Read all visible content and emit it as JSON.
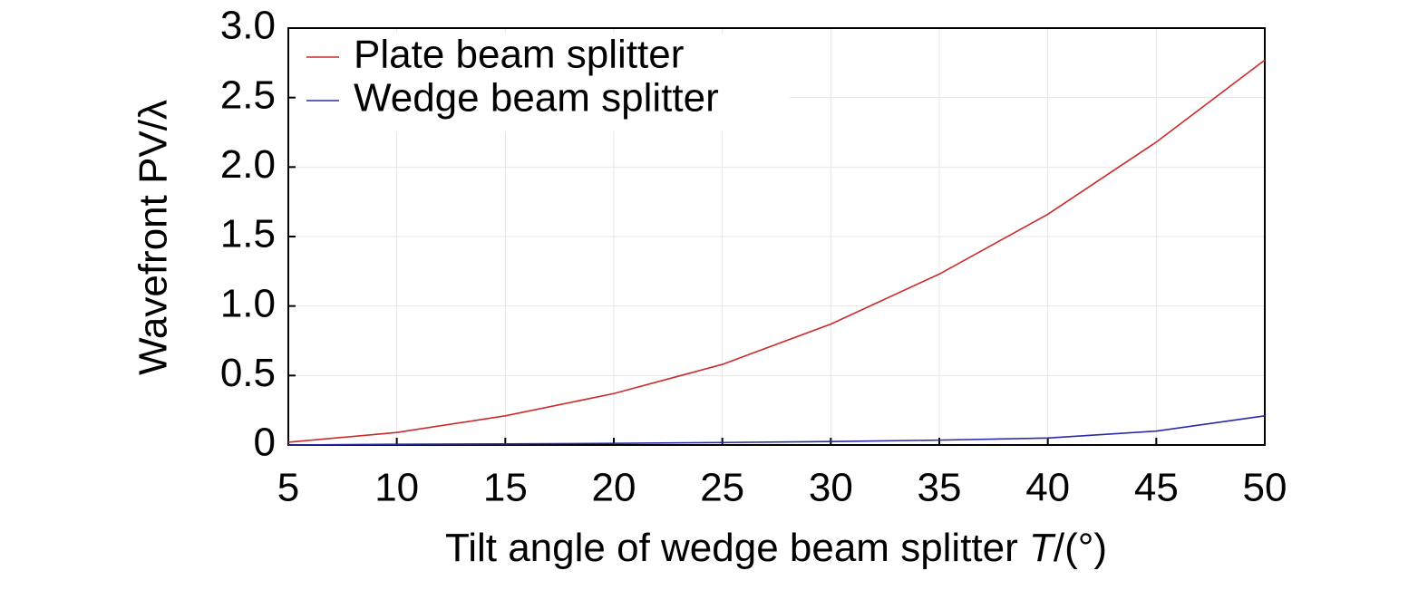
{
  "chart_data": {
    "type": "line",
    "x_label": [
      "Tilt angle of wedge beam splitter ",
      "T",
      "/(°)"
    ],
    "y_label": "Wavefront PV/λ",
    "x": [
      5,
      10,
      15,
      20,
      25,
      30,
      35,
      40,
      45,
      50
    ],
    "series": [
      {
        "name": "Plate beam splitter",
        "color": "#cc2a2a",
        "values": [
          0.02,
          0.09,
          0.21,
          0.37,
          0.58,
          0.87,
          1.23,
          1.66,
          2.18,
          2.77
        ]
      },
      {
        "name": "Wedge beam splitter",
        "color": "#2a2aa8",
        "values": [
          0.0,
          0.005,
          0.008,
          0.012,
          0.018,
          0.025,
          0.035,
          0.05,
          0.1,
          0.21
        ]
      }
    ],
    "xlim": [
      5,
      50
    ],
    "xticks": [
      5,
      10,
      15,
      20,
      25,
      30,
      35,
      40,
      45,
      50
    ],
    "ylim": [
      0,
      3
    ],
    "yticks": [
      0,
      0.5,
      {
        "value": 1,
        "label": "1.0"
      },
      1.5,
      {
        "value": 2,
        "label": "2.0"
      },
      2.5,
      {
        "value": 3,
        "label": "3.0"
      }
    ],
    "grid": true,
    "legend": "upper-left"
  }
}
